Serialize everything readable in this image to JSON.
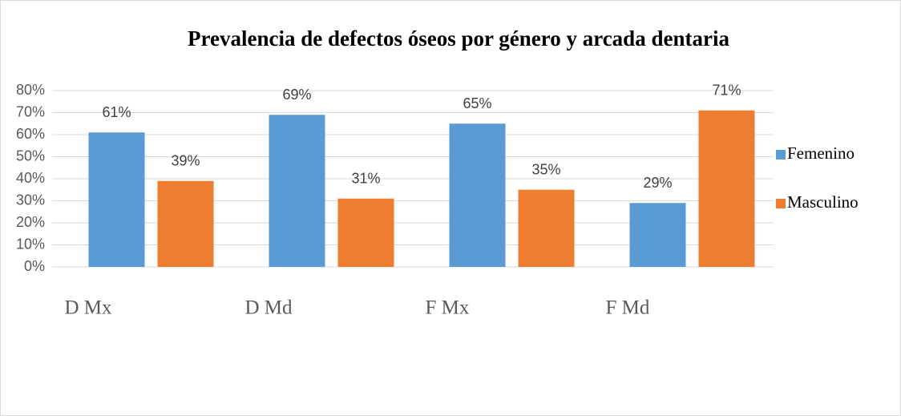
{
  "chart_data": {
    "type": "bar",
    "title": "Prevalencia de defectos óseos por género y arcada dentaria",
    "categories": [
      "D Mx",
      "D Md",
      "F Mx",
      "F Md"
    ],
    "series": [
      {
        "name": "Femenino",
        "color": "#5b9bd5",
        "values": [
          61,
          69,
          65,
          29
        ],
        "value_labels": [
          "61%",
          "69%",
          "65%",
          "29%"
        ]
      },
      {
        "name": "Masculino",
        "color": "#ed7d31",
        "values": [
          39,
          31,
          35,
          71
        ],
        "value_labels": [
          "39%",
          "31%",
          "35%",
          "71%"
        ]
      }
    ],
    "ylim": [
      0,
      80
    ],
    "yticks": [
      {
        "value": 0,
        "label": "0%"
      },
      {
        "value": 10,
        "label": "10%"
      },
      {
        "value": 20,
        "label": "20%"
      },
      {
        "value": 30,
        "label": "30%"
      },
      {
        "value": 40,
        "label": "40%"
      },
      {
        "value": 50,
        "label": "50%"
      },
      {
        "value": 60,
        "label": "60%"
      },
      {
        "value": 70,
        "label": "70%"
      },
      {
        "value": 80,
        "label": "80%"
      }
    ],
    "grid": true,
    "legend": "right"
  }
}
